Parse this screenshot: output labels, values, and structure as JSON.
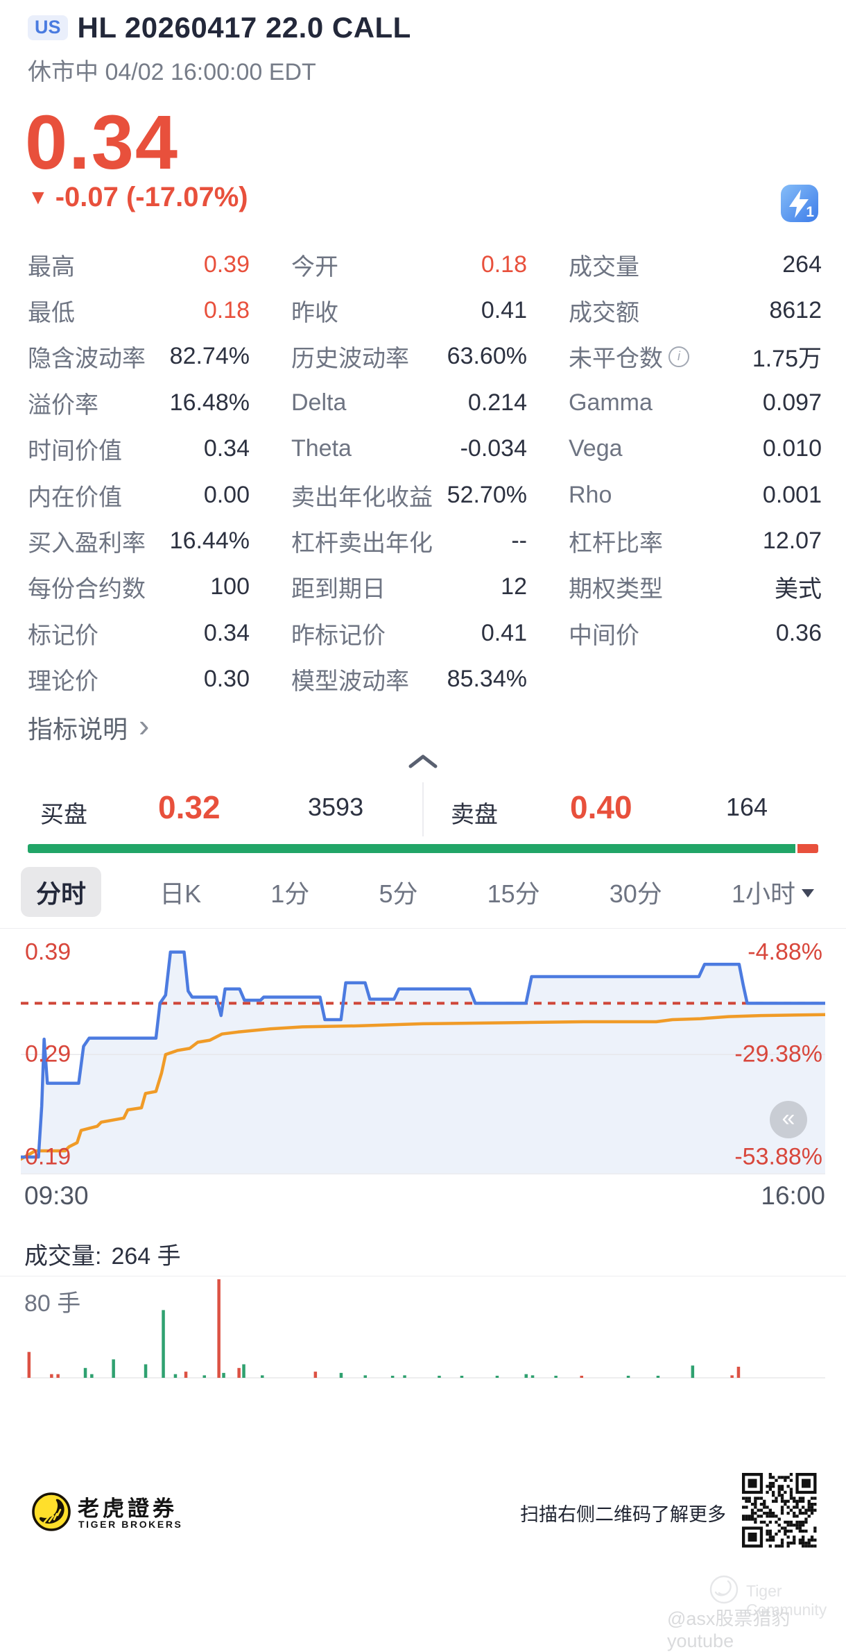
{
  "header": {
    "market_badge": "US",
    "title": "HL 20260417 22.0 CALL",
    "status": "休市中 04/02 16:00:00 EDT",
    "price": "0.34",
    "change_arrow": "▼",
    "change_text": "-0.07 (-17.07%)",
    "level_badge": "1"
  },
  "colors": {
    "down_red": "#e8503c",
    "up_green": "#21a567",
    "line_blue": "#4c7be0",
    "avg_orange": "#f09b27"
  },
  "stats": {
    "rows": [
      [
        {
          "l": "最高",
          "v": "0.39",
          "red": true
        },
        {
          "l": "今开",
          "v": "0.18",
          "red": true
        },
        {
          "l": "成交量",
          "v": "264"
        }
      ],
      [
        {
          "l": "最低",
          "v": "0.18",
          "red": true
        },
        {
          "l": "昨收",
          "v": "0.41"
        },
        {
          "l": "成交额",
          "v": "8612"
        }
      ],
      [
        {
          "l": "隐含波动率",
          "v": "82.74%"
        },
        {
          "l": "历史波动率",
          "v": "63.60%"
        },
        {
          "l": "未平仓数",
          "v": "1.75万",
          "info": true
        }
      ],
      [
        {
          "l": "溢价率",
          "v": "16.48%"
        },
        {
          "l": "Delta",
          "v": "0.214"
        },
        {
          "l": "Gamma",
          "v": "0.097"
        }
      ],
      [
        {
          "l": "时间价值",
          "v": "0.34"
        },
        {
          "l": "Theta",
          "v": "-0.034"
        },
        {
          "l": "Vega",
          "v": "0.010"
        }
      ],
      [
        {
          "l": "内在价值",
          "v": "0.00"
        },
        {
          "l": "卖出年化收益",
          "v": "52.70%"
        },
        {
          "l": "Rho",
          "v": "0.001"
        }
      ],
      [
        {
          "l": "买入盈利率",
          "v": "16.44%"
        },
        {
          "l": "杠杆卖出年化",
          "v": "--"
        },
        {
          "l": "杠杆比率",
          "v": "12.07"
        }
      ],
      [
        {
          "l": "每份合约数",
          "v": "100"
        },
        {
          "l": "距到期日",
          "v": "12"
        },
        {
          "l": "期权类型",
          "v": "美式"
        }
      ],
      [
        {
          "l": "标记价",
          "v": "0.34"
        },
        {
          "l": "昨标记价",
          "v": "0.41"
        },
        {
          "l": "中间价",
          "v": "0.36"
        }
      ],
      [
        {
          "l": "理论价",
          "v": "0.30"
        },
        {
          "l": "模型波动率",
          "v": "85.34%"
        }
      ]
    ]
  },
  "indicator_link": {
    "label": "指标说明",
    "chevron": "›"
  },
  "order_book": {
    "bid_label": "买盘",
    "bid_price": "0.32",
    "bid_size": "3593",
    "ask_label": "卖盘",
    "ask_price": "0.40",
    "ask_size": "164"
  },
  "tabs": [
    {
      "label": "分时",
      "selected": true
    },
    {
      "label": "日K"
    },
    {
      "label": "1分"
    },
    {
      "label": "5分"
    },
    {
      "label": "15分"
    },
    {
      "label": "30分"
    },
    {
      "label": "1小时",
      "caret": true
    }
  ],
  "chart_data": [
    {
      "type": "line",
      "title": "分时",
      "x_labels": [
        "09:30",
        "16:00"
      ],
      "y_range": [
        0.173,
        0.408
      ],
      "left_labels": [
        {
          "text": "0.39",
          "price": 0.39
        },
        {
          "text": "0.29",
          "price": 0.29
        },
        {
          "text": "0.19",
          "price": 0.19
        }
      ],
      "right_labels": [
        {
          "text": "-4.88%",
          "price": 0.39
        },
        {
          "text": "-29.38%",
          "price": 0.29
        },
        {
          "text": "-53.88%",
          "price": 0.19
        }
      ],
      "gridlines": [
        0.29
      ],
      "dashed_reference": 0.34,
      "legend_position": "none",
      "series": [
        {
          "name": "price",
          "color": "#4c7be0",
          "fill": "#edf2fa",
          "points": [
            [
              0.0,
              0.19
            ],
            [
              0.022,
              0.19
            ],
            [
              0.026,
              0.24
            ],
            [
              0.029,
              0.305
            ],
            [
              0.033,
              0.262
            ],
            [
              0.072,
              0.262
            ],
            [
              0.078,
              0.298
            ],
            [
              0.085,
              0.306
            ],
            [
              0.168,
              0.306
            ],
            [
              0.173,
              0.34
            ],
            [
              0.18,
              0.348
            ],
            [
              0.186,
              0.39
            ],
            [
              0.203,
              0.39
            ],
            [
              0.208,
              0.352
            ],
            [
              0.213,
              0.346
            ],
            [
              0.243,
              0.346
            ],
            [
              0.249,
              0.328
            ],
            [
              0.254,
              0.354
            ],
            [
              0.272,
              0.354
            ],
            [
              0.278,
              0.343
            ],
            [
              0.298,
              0.343
            ],
            [
              0.302,
              0.346
            ],
            [
              0.372,
              0.346
            ],
            [
              0.378,
              0.324
            ],
            [
              0.398,
              0.324
            ],
            [
              0.404,
              0.36
            ],
            [
              0.428,
              0.36
            ],
            [
              0.434,
              0.344
            ],
            [
              0.464,
              0.344
            ],
            [
              0.47,
              0.354
            ],
            [
              0.558,
              0.354
            ],
            [
              0.565,
              0.34
            ],
            [
              0.628,
              0.34
            ],
            [
              0.635,
              0.366
            ],
            [
              0.843,
              0.366
            ],
            [
              0.85,
              0.378
            ],
            [
              0.893,
              0.378
            ],
            [
              0.898,
              0.358
            ],
            [
              0.903,
              0.34
            ],
            [
              1.0,
              0.34
            ]
          ]
        },
        {
          "name": "avg_price",
          "color": "#f09b27",
          "points": [
            [
              0.0,
              0.188
            ],
            [
              0.018,
              0.196
            ],
            [
              0.055,
              0.196
            ],
            [
              0.06,
              0.2
            ],
            [
              0.07,
              0.204
            ],
            [
              0.075,
              0.216
            ],
            [
              0.095,
              0.22
            ],
            [
              0.1,
              0.224
            ],
            [
              0.128,
              0.228
            ],
            [
              0.133,
              0.236
            ],
            [
              0.15,
              0.238
            ],
            [
              0.155,
              0.252
            ],
            [
              0.168,
              0.254
            ],
            [
              0.175,
              0.272
            ],
            [
              0.18,
              0.29
            ],
            [
              0.195,
              0.294
            ],
            [
              0.21,
              0.296
            ],
            [
              0.22,
              0.302
            ],
            [
              0.235,
              0.304
            ],
            [
              0.25,
              0.31
            ],
            [
              0.27,
              0.312
            ],
            [
              0.31,
              0.315
            ],
            [
              0.35,
              0.317
            ],
            [
              0.42,
              0.318
            ],
            [
              0.5,
              0.32
            ],
            [
              0.6,
              0.321
            ],
            [
              0.7,
              0.322
            ],
            [
              0.79,
              0.322
            ],
            [
              0.81,
              0.324
            ],
            [
              0.845,
              0.325
            ],
            [
              0.88,
              0.327
            ],
            [
              0.92,
              0.328
            ],
            [
              1.0,
              0.329
            ]
          ]
        }
      ]
    },
    {
      "type": "bar",
      "name": "volume",
      "unit": "手",
      "max": 80,
      "axis_label": "80 手",
      "colors": {
        "u": "#2fa170",
        "d": "#dc5244"
      },
      "bars": [
        [
          0.01,
          21,
          "d"
        ],
        [
          0.038,
          3,
          "d"
        ],
        [
          0.046,
          3,
          "d"
        ],
        [
          0.08,
          8,
          "u"
        ],
        [
          0.088,
          3,
          "u"
        ],
        [
          0.115,
          15,
          "u"
        ],
        [
          0.155,
          11,
          "u"
        ],
        [
          0.177,
          55,
          "u"
        ],
        [
          0.192,
          3,
          "u"
        ],
        [
          0.205,
          5,
          "d"
        ],
        [
          0.228,
          2,
          "u"
        ],
        [
          0.246,
          80,
          "d"
        ],
        [
          0.252,
          4,
          "u"
        ],
        [
          0.271,
          8,
          "d"
        ],
        [
          0.277,
          11,
          "u"
        ],
        [
          0.3,
          2,
          "u"
        ],
        [
          0.366,
          5,
          "d"
        ],
        [
          0.398,
          4,
          "u"
        ],
        [
          0.428,
          2,
          "u"
        ],
        [
          0.462,
          1.5,
          "u"
        ],
        [
          0.477,
          2,
          "u"
        ],
        [
          0.52,
          1.5,
          "u"
        ],
        [
          0.548,
          1,
          "u"
        ],
        [
          0.592,
          1.5,
          "u"
        ],
        [
          0.628,
          3,
          "u"
        ],
        [
          0.636,
          2,
          "u"
        ],
        [
          0.665,
          1,
          "u"
        ],
        [
          0.697,
          1.5,
          "d"
        ],
        [
          0.755,
          1,
          "u"
        ],
        [
          0.792,
          1,
          "u"
        ],
        [
          0.835,
          10,
          "u"
        ],
        [
          0.884,
          2,
          "d"
        ],
        [
          0.892,
          9,
          "d"
        ]
      ]
    }
  ],
  "volume_header": {
    "label": "成交量:",
    "value": "264 手"
  },
  "footer": {
    "logo_cn": "老虎證券",
    "logo_en": "TIGER BROKERS",
    "scan_text": "扫描右侧二维码了解更多"
  },
  "watermark": {
    "community": "Tiger Community",
    "handle": "@asx股票猎豹 youtube"
  }
}
